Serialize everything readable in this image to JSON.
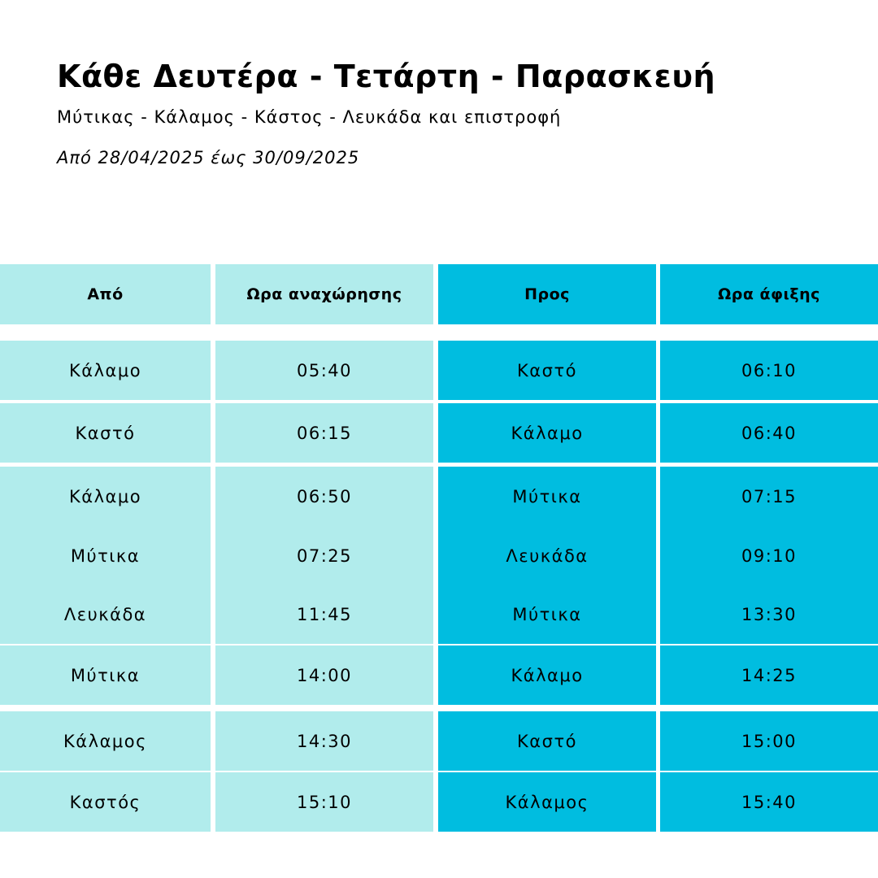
{
  "header": {
    "title": "Κάθε Δευτέρα - Τετάρτη - Παρασκευή",
    "route": "Μύτικας - Κάλαμος - Κάστος - Λευκάδα και επιστροφή",
    "validity": "Από 28/04/2025 έως 30/09/2025"
  },
  "colors": {
    "light_column": "#b1ecec",
    "dark_column": "#00bde0"
  },
  "table": {
    "headers": [
      "Από",
      "Ωρα αναχώρησης",
      "Προς",
      "Ωρα άφιξης"
    ],
    "rows": [
      [
        "Κάλαμο",
        "05:40",
        "Καστό",
        "06:10"
      ],
      [
        "Καστό",
        "06:15",
        "Κάλαμο",
        "06:40"
      ],
      [
        "Κάλαμο",
        "06:50",
        "Μύτικα",
        "07:15"
      ],
      [
        "Μύτικα",
        "07:25",
        "Λευκάδα",
        "09:10"
      ],
      [
        "Λευκάδα",
        "11:45",
        "Μύτικα",
        "13:30"
      ],
      [
        "Μύτικα",
        "14:00",
        "Κάλαμο",
        "14:25"
      ],
      [
        "Κάλαμος",
        "14:30",
        "Καστό",
        "15:00"
      ],
      [
        "Καστός",
        "15:10",
        "Κάλαμος",
        "15:40"
      ]
    ]
  }
}
